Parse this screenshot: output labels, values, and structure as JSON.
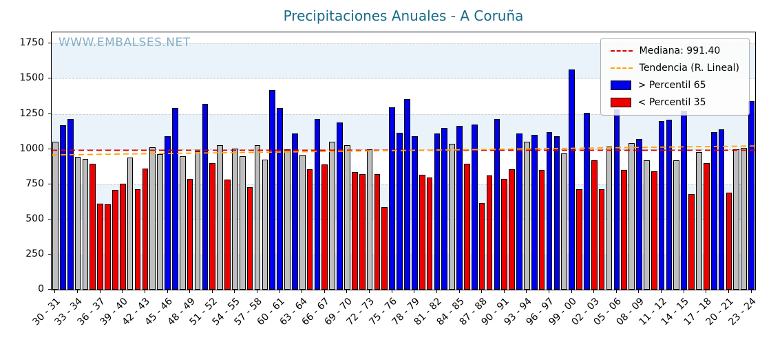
{
  "title": "Precipitaciones Anuales - A Coruña",
  "watermark": "WWW.EMBALSES.NET",
  "legend": {
    "median_label": "Mediana: 991.40",
    "trend_label": "Tendencia (R. Lineal)",
    "above_label": "> Percentil 65",
    "below_label": "< Percentil 35"
  },
  "colors": {
    "above": "#0000EE",
    "below": "#EE0000",
    "mid": "#BEBEBE",
    "median_line": "#DC0000",
    "trend_line": "#FFA500",
    "title": "#176B87",
    "watermark": "#85AFC9",
    "grid": "#CFCFCF",
    "stripe": "#E9F3F9"
  },
  "chart_data": {
    "type": "bar",
    "title": "Precipitaciones Anuales - A Coruña",
    "xlabel": "",
    "ylabel": "",
    "ylim": [
      0,
      1830
    ],
    "yticks": [
      0,
      250,
      500,
      750,
      1000,
      1250,
      1500,
      1750
    ],
    "grid": true,
    "legend_position": "upper right",
    "median": 991.4,
    "trend": {
      "start": 958,
      "end": 1022
    },
    "tick_every": 3,
    "bars": [
      {
        "s": "30 - 31",
        "v": 1050,
        "c": "mid"
      },
      {
        "s": "31 - 32",
        "v": 1170,
        "c": "above"
      },
      {
        "s": "32 - 33",
        "v": 1215,
        "c": "above"
      },
      {
        "s": "33 - 34",
        "v": 945,
        "c": "mid"
      },
      {
        "s": "34 - 35",
        "v": 930,
        "c": "mid"
      },
      {
        "s": "35 - 36",
        "v": 895,
        "c": "below"
      },
      {
        "s": "36 - 37",
        "v": 610,
        "c": "below"
      },
      {
        "s": "37 - 38",
        "v": 605,
        "c": "below"
      },
      {
        "s": "38 - 39",
        "v": 710,
        "c": "below"
      },
      {
        "s": "39 - 40",
        "v": 755,
        "c": "below"
      },
      {
        "s": "40 - 41",
        "v": 940,
        "c": "mid"
      },
      {
        "s": "41 - 42",
        "v": 715,
        "c": "below"
      },
      {
        "s": "42 - 43",
        "v": 860,
        "c": "below"
      },
      {
        "s": "43 - 44",
        "v": 1015,
        "c": "mid"
      },
      {
        "s": "44 - 45",
        "v": 965,
        "c": "mid"
      },
      {
        "s": "45 - 46",
        "v": 1090,
        "c": "above"
      },
      {
        "s": "46 - 47",
        "v": 1290,
        "c": "above"
      },
      {
        "s": "47 - 48",
        "v": 950,
        "c": "mid"
      },
      {
        "s": "48 - 49",
        "v": 790,
        "c": "below"
      },
      {
        "s": "49 - 50",
        "v": 985,
        "c": "mid"
      },
      {
        "s": "50 - 51",
        "v": 1320,
        "c": "above"
      },
      {
        "s": "51 - 52",
        "v": 900,
        "c": "below"
      },
      {
        "s": "52 - 53",
        "v": 1030,
        "c": "mid"
      },
      {
        "s": "53 - 54",
        "v": 785,
        "c": "below"
      },
      {
        "s": "54 - 55",
        "v": 1005,
        "c": "mid"
      },
      {
        "s": "55 - 56",
        "v": 950,
        "c": "mid"
      },
      {
        "s": "56 - 57",
        "v": 730,
        "c": "below"
      },
      {
        "s": "57 - 58",
        "v": 1030,
        "c": "mid"
      },
      {
        "s": "58 - 59",
        "v": 925,
        "c": "mid"
      },
      {
        "s": "59 - 60",
        "v": 1420,
        "c": "above"
      },
      {
        "s": "60 - 61",
        "v": 1290,
        "c": "above"
      },
      {
        "s": "61 - 62",
        "v": 1000,
        "c": "mid"
      },
      {
        "s": "62 - 63",
        "v": 1110,
        "c": "above"
      },
      {
        "s": "63 - 64",
        "v": 960,
        "c": "mid"
      },
      {
        "s": "64 - 65",
        "v": 855,
        "c": "below"
      },
      {
        "s": "65 - 66",
        "v": 1215,
        "c": "above"
      },
      {
        "s": "66 - 67",
        "v": 890,
        "c": "below"
      },
      {
        "s": "67 - 68",
        "v": 1050,
        "c": "mid"
      },
      {
        "s": "68 - 69",
        "v": 1190,
        "c": "above"
      },
      {
        "s": "69 - 70",
        "v": 1030,
        "c": "mid"
      },
      {
        "s": "70 - 71",
        "v": 835,
        "c": "below"
      },
      {
        "s": "71 - 72",
        "v": 820,
        "c": "below"
      },
      {
        "s": "72 - 73",
        "v": 1000,
        "c": "mid"
      },
      {
        "s": "73 - 74",
        "v": 820,
        "c": "below"
      },
      {
        "s": "74 - 75",
        "v": 585,
        "c": "below"
      },
      {
        "s": "75 - 76",
        "v": 1295,
        "c": "above"
      },
      {
        "s": "76 - 77",
        "v": 1115,
        "c": "above"
      },
      {
        "s": "77 - 78",
        "v": 1355,
        "c": "above"
      },
      {
        "s": "78 - 79",
        "v": 1090,
        "c": "above"
      },
      {
        "s": "79 - 80",
        "v": 815,
        "c": "below"
      },
      {
        "s": "80 - 81",
        "v": 800,
        "c": "below"
      },
      {
        "s": "81 - 82",
        "v": 1110,
        "c": "above"
      },
      {
        "s": "82 - 83",
        "v": 1150,
        "c": "above"
      },
      {
        "s": "83 - 84",
        "v": 1035,
        "c": "mid"
      },
      {
        "s": "84 - 85",
        "v": 1165,
        "c": "above"
      },
      {
        "s": "85 - 86",
        "v": 895,
        "c": "below"
      },
      {
        "s": "86 - 87",
        "v": 1175,
        "c": "above"
      },
      {
        "s": "87 - 88",
        "v": 615,
        "c": "below"
      },
      {
        "s": "88 - 89",
        "v": 810,
        "c": "below"
      },
      {
        "s": "89 - 90",
        "v": 1215,
        "c": "above"
      },
      {
        "s": "90 - 91",
        "v": 790,
        "c": "below"
      },
      {
        "s": "91 - 92",
        "v": 855,
        "c": "below"
      },
      {
        "s": "92 - 93",
        "v": 1110,
        "c": "above"
      },
      {
        "s": "93 - 94",
        "v": 1050,
        "c": "mid"
      },
      {
        "s": "94 - 95",
        "v": 1100,
        "c": "above"
      },
      {
        "s": "95 - 96",
        "v": 850,
        "c": "below"
      },
      {
        "s": "96 - 97",
        "v": 1120,
        "c": "above"
      },
      {
        "s": "97 - 98",
        "v": 1090,
        "c": "above"
      },
      {
        "s": "98 - 99",
        "v": 970,
        "c": "mid"
      },
      {
        "s": "99 - 00",
        "v": 1565,
        "c": "above"
      },
      {
        "s": "00 - 01",
        "v": 715,
        "c": "below"
      },
      {
        "s": "01 - 02",
        "v": 1260,
        "c": "above"
      },
      {
        "s": "02 - 03",
        "v": 920,
        "c": "below"
      },
      {
        "s": "03 - 04",
        "v": 715,
        "c": "below"
      },
      {
        "s": "04 - 05",
        "v": 1020,
        "c": "mid"
      },
      {
        "s": "05 - 06",
        "v": 1280,
        "c": "above"
      },
      {
        "s": "06 - 07",
        "v": 850,
        "c": "below"
      },
      {
        "s": "07 - 08",
        "v": 1040,
        "c": "mid"
      },
      {
        "s": "08 - 09",
        "v": 1070,
        "c": "above"
      },
      {
        "s": "09 - 10",
        "v": 920,
        "c": "mid"
      },
      {
        "s": "10 - 11",
        "v": 840,
        "c": "below"
      },
      {
        "s": "11 - 12",
        "v": 1200,
        "c": "above"
      },
      {
        "s": "12 - 13",
        "v": 1210,
        "c": "above"
      },
      {
        "s": "13 - 14",
        "v": 920,
        "c": "mid"
      },
      {
        "s": "14 - 15",
        "v": 1270,
        "c": "above"
      },
      {
        "s": "15 - 16",
        "v": 680,
        "c": "below"
      },
      {
        "s": "16 - 17",
        "v": 980,
        "c": "mid"
      },
      {
        "s": "17 - 18",
        "v": 900,
        "c": "below"
      },
      {
        "s": "18 - 19",
        "v": 1120,
        "c": "above"
      },
      {
        "s": "19 - 20",
        "v": 1140,
        "c": "above"
      },
      {
        "s": "20 - 21",
        "v": 690,
        "c": "below"
      },
      {
        "s": "21 - 22",
        "v": 1000,
        "c": "mid"
      },
      {
        "s": "22 - 23",
        "v": 1010,
        "c": "mid"
      },
      {
        "s": "23 - 24",
        "v": 1340,
        "c": "above"
      }
    ]
  }
}
